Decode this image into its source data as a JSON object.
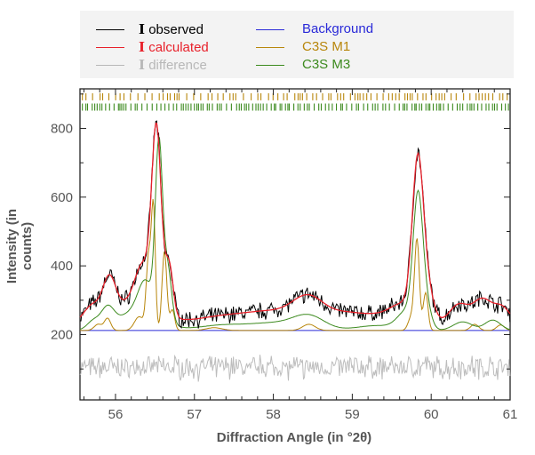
{
  "chart_data": {
    "type": "line",
    "xlabel": "Diffraction Angle (in °2θ)",
    "ylabel": "Intensity (in counts)",
    "xlim": [
      55.55,
      61
    ],
    "ylim": [
      10,
      915
    ],
    "x_ticks": [
      56,
      57,
      58,
      59,
      60,
      61
    ],
    "y_ticks": [
      200,
      400,
      600,
      800
    ],
    "x_tick_labels": [
      "56",
      "57",
      "58",
      "59",
      "60",
      "61"
    ],
    "y_tick_labels": [
      "200",
      "400",
      "600",
      "800"
    ],
    "grid": false,
    "legend_position": "top",
    "legend": [
      {
        "symbol": "I",
        "label": "observed",
        "color": "#000000"
      },
      {
        "symbol": "I",
        "label": "calculated",
        "color": "#e8202a"
      },
      {
        "symbol": "I",
        "label": "difference",
        "color": "#b8b8b8"
      },
      {
        "symbol": "",
        "label": "Background",
        "color": "#2a2ad8"
      },
      {
        "symbol": "",
        "label": "C3S M1",
        "color": "#b8860b"
      },
      {
        "symbol": "",
        "label": "C3S M3",
        "color": "#3c8a1e"
      }
    ],
    "background_level": 212,
    "peaks": [
      {
        "position": 56.52,
        "observed_max": 875,
        "calculated_max": 865,
        "m3_max": 720,
        "m1_max": 575
      },
      {
        "position": 59.83,
        "observed_max": 685,
        "calculated_max": 712,
        "m3_max": 555,
        "m1_max": 485
      },
      {
        "position": 55.92,
        "observed_max": 378,
        "calculated_max": 360
      },
      {
        "position": 58.45,
        "observed_max": 322,
        "calculated_max": 305
      }
    ],
    "reflection_ticks": [
      {
        "phase": "C3S M1",
        "color": "#b8860b",
        "y": 892
      },
      {
        "phase": "C3S M3",
        "color": "#3c8a1e",
        "y": 862
      }
    ]
  }
}
